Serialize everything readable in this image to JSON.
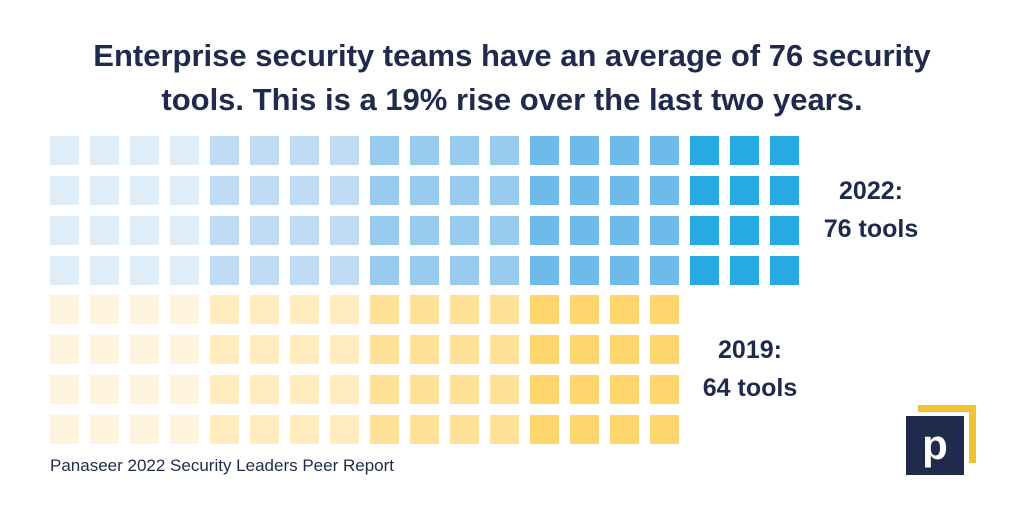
{
  "headline": {
    "line1": "Enterprise security teams have an average of 76 security",
    "line2": "tools. This is a 19% rise over the last two years."
  },
  "chart_data": {
    "type": "waffle",
    "unit": "security tool",
    "rows_per_group": 4,
    "series": [
      {
        "name": "2022",
        "label_line1": "2022:",
        "label_line2": "76 tools",
        "value": 76,
        "column_colors": [
          "#dfedf9",
          "#dfedf9",
          "#dfedf9",
          "#dfedf9",
          "#bfdcf4",
          "#bfdcf4",
          "#bfdcf4",
          "#bfdcf4",
          "#98cbee",
          "#98cbee",
          "#98cbee",
          "#98cbee",
          "#6ebbea",
          "#6ebbea",
          "#6ebbea",
          "#6ebbea",
          "#27aae2",
          "#27aae2",
          "#27aae2"
        ]
      },
      {
        "name": "2019",
        "label_line1": "2019:",
        "label_line2": "64 tools",
        "value": 64,
        "column_colors": [
          "#fff5de",
          "#fff5de",
          "#fff5de",
          "#fff5de",
          "#ffebbd",
          "#ffebbd",
          "#ffebbd",
          "#ffebbd",
          "#ffe199",
          "#ffe199",
          "#ffe199",
          "#ffe199",
          "#ffd66e",
          "#ffd66e",
          "#ffd66e",
          "#ffd66e"
        ]
      }
    ]
  },
  "source": "Panaseer 2022 Security Leaders Peer Report",
  "logo": {
    "letter": "p",
    "navy": "#1f2a4d",
    "gold": "#f2c233"
  }
}
